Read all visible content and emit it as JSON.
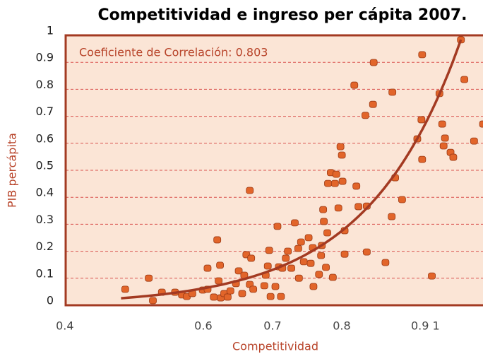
{
  "chart_data": {
    "type": "scatter",
    "title": "Competitividad e ingreso per cápita 2007.",
    "annotation": "Coeficiente de Correlación: 0.803",
    "x_label": "Competitividad",
    "y_label": "PIB percápita",
    "color": "#e2652a",
    "xlim": [
      0.393,
      1.0
    ],
    "ylim": [
      0,
      1
    ],
    "xticks": [
      0.4,
      0.6,
      0.7,
      0.8,
      {
        "value": 0.9,
        "label": "0.9 1"
      }
    ],
    "yticks": [
      0,
      0.1,
      0.2,
      0.3,
      0.4,
      0.5,
      0.6,
      0.7,
      0.8,
      0.9,
      1
    ],
    "grid": true,
    "trend": {
      "type": "exponential",
      "a": 0.000785,
      "b": 7.4,
      "x": [
        0.473,
        0.964
      ],
      "color": "#a33a22"
    },
    "x": [
      0.479,
      0.513,
      0.519,
      0.532,
      0.551,
      0.561,
      0.568,
      0.576,
      0.591,
      0.598,
      0.607,
      0.617,
      0.622,
      0.627,
      0.631,
      0.639,
      0.648,
      0.659,
      0.664,
      0.598,
      0.612,
      0.616,
      0.614,
      0.643,
      0.651,
      0.654,
      0.661,
      0.659,
      0.68,
      0.682,
      0.685,
      0.687,
      0.689,
      0.696,
      0.699,
      0.701,
      0.704,
      0.706,
      0.711,
      0.714,
      0.719,
      0.724,
      0.729,
      0.73,
      0.733,
      0.737,
      0.744,
      0.747,
      0.75,
      0.751,
      0.759,
      0.762,
      0.763,
      0.765,
      0.766,
      0.769,
      0.771,
      0.772,
      0.776,
      0.779,
      0.782,
      0.784,
      0.787,
      0.793,
      0.796,
      0.792,
      0.796,
      0.813,
      0.816,
      0.828,
      0.828,
      0.826,
      0.838,
      0.837,
      0.855,
      0.865,
      0.864,
      0.869,
      0.879,
      0.901,
      0.907,
      0.908,
      0.922,
      0.933,
      0.937,
      0.939,
      0.941,
      0.949,
      0.953,
      0.964,
      0.969,
      0.983,
      0.996,
      0.81,
      0.79,
      0.908
    ],
    "values": [
      0.058,
      0.099,
      0.016,
      0.047,
      0.047,
      0.037,
      0.031,
      0.042,
      0.055,
      0.058,
      0.029,
      0.026,
      0.042,
      0.029,
      0.052,
      0.079,
      0.042,
      0.076,
      0.058,
      0.136,
      0.241,
      0.147,
      0.089,
      0.126,
      0.11,
      0.186,
      0.173,
      0.424,
      0.071,
      0.11,
      0.144,
      0.202,
      0.031,
      0.068,
      0.291,
      0.141,
      0.031,
      0.136,
      0.173,
      0.199,
      0.136,
      0.304,
      0.209,
      0.099,
      0.233,
      0.16,
      0.249,
      0.154,
      0.212,
      0.068,
      0.113,
      0.183,
      0.22,
      0.353,
      0.309,
      0.139,
      0.267,
      0.45,
      0.49,
      0.102,
      0.45,
      0.484,
      0.359,
      0.458,
      0.188,
      0.555,
      0.275,
      0.44,
      0.364,
      0.366,
      0.196,
      0.702,
      0.898,
      0.743,
      0.157,
      0.788,
      0.327,
      0.471,
      0.39,
      0.615,
      0.686,
      0.927,
      0.107,
      0.783,
      0.67,
      0.589,
      0.618,
      0.565,
      0.547,
      0.982,
      0.835,
      0.607,
      0.67,
      0.814,
      0.586,
      0.539
    ]
  }
}
